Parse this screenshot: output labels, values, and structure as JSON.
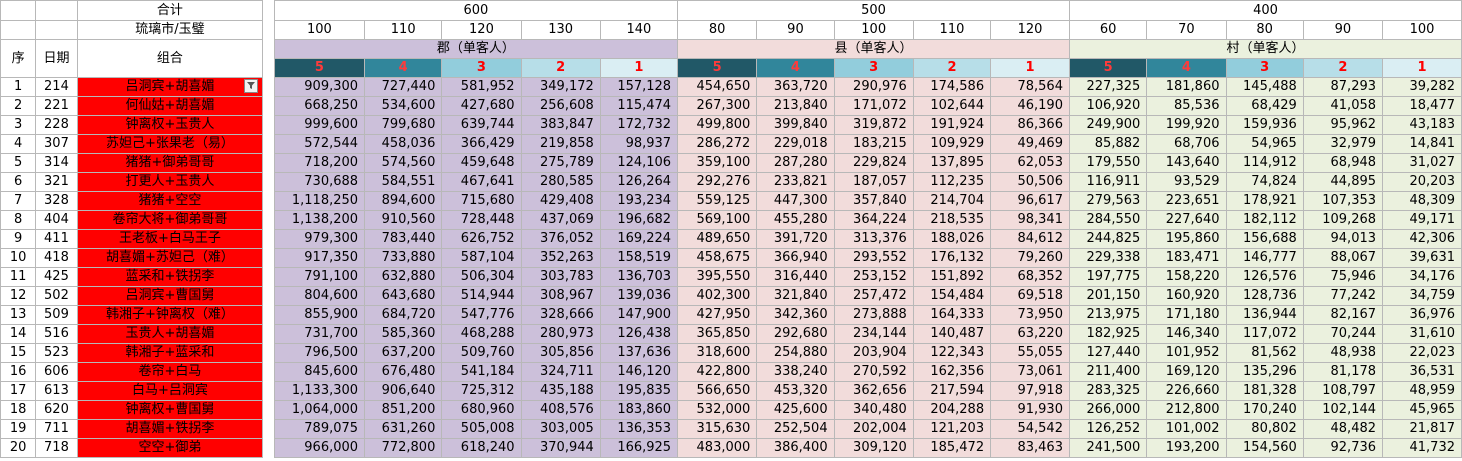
{
  "header": {
    "total_label": "合计",
    "location_label": "琉璃市/玉璧",
    "combo_label": "组合",
    "seq_label": "序",
    "date_label": "日期",
    "filter_icon": "filter-icon"
  },
  "groups": [
    {
      "amount": "600",
      "tier": "郡（单客人）",
      "cols": [
        "100",
        "110",
        "120",
        "130",
        "140"
      ]
    },
    {
      "amount": "500",
      "tier": "县（单客人）",
      "cols": [
        "80",
        "90",
        "100",
        "110",
        "120"
      ]
    },
    {
      "amount": "400",
      "tier": "村（单客人）",
      "cols": [
        "60",
        "70",
        "80",
        "90",
        "100"
      ]
    }
  ],
  "levels": [
    "5",
    "4",
    "3",
    "2",
    "1"
  ],
  "rows": [
    {
      "seq": "1",
      "date": "214",
      "combo": "吕洞宾+胡喜媚",
      "v": [
        "909,300",
        "727,440",
        "581,952",
        "349,172",
        "157,128",
        "454,650",
        "363,720",
        "290,976",
        "174,586",
        "78,564",
        "227,325",
        "181,860",
        "145,488",
        "87,293",
        "39,282"
      ]
    },
    {
      "seq": "2",
      "date": "221",
      "combo": "何仙姑+胡喜媚",
      "v": [
        "668,250",
        "534,600",
        "427,680",
        "256,608",
        "115,474",
        "267,300",
        "213,840",
        "171,072",
        "102,644",
        "46,190",
        "106,920",
        "85,536",
        "68,429",
        "41,058",
        "18,477"
      ]
    },
    {
      "seq": "3",
      "date": "228",
      "combo": "钟离权+玉贵人",
      "v": [
        "999,600",
        "799,680",
        "639,744",
        "383,847",
        "172,732",
        "499,800",
        "399,840",
        "319,872",
        "191,924",
        "86,366",
        "249,900",
        "199,920",
        "159,936",
        "95,962",
        "43,183"
      ]
    },
    {
      "seq": "4",
      "date": "307",
      "combo": "苏妲己+张果老（易）",
      "v": [
        "572,544",
        "458,036",
        "366,429",
        "219,858",
        "98,937",
        "286,272",
        "229,018",
        "183,215",
        "109,929",
        "49,469",
        "85,882",
        "68,706",
        "54,965",
        "32,979",
        "14,841"
      ]
    },
    {
      "seq": "5",
      "date": "314",
      "combo": "猪猪+御弟哥哥",
      "v": [
        "718,200",
        "574,560",
        "459,648",
        "275,789",
        "124,106",
        "359,100",
        "287,280",
        "229,824",
        "137,895",
        "62,053",
        "179,550",
        "143,640",
        "114,912",
        "68,948",
        "31,027"
      ]
    },
    {
      "seq": "6",
      "date": "321",
      "combo": "打更人+玉贵人",
      "v": [
        "730,688",
        "584,551",
        "467,641",
        "280,585",
        "126,264",
        "292,276",
        "233,821",
        "187,057",
        "112,235",
        "50,506",
        "116,911",
        "93,529",
        "74,824",
        "44,895",
        "20,203"
      ]
    },
    {
      "seq": "7",
      "date": "328",
      "combo": "猪猪+空空",
      "v": [
        "1,118,250",
        "894,600",
        "715,680",
        "429,408",
        "193,234",
        "559,125",
        "447,300",
        "357,840",
        "214,704",
        "96,617",
        "279,563",
        "223,651",
        "178,921",
        "107,353",
        "48,309"
      ]
    },
    {
      "seq": "8",
      "date": "404",
      "combo": "卷帘大将+御弟哥哥",
      "v": [
        "1,138,200",
        "910,560",
        "728,448",
        "437,069",
        "196,682",
        "569,100",
        "455,280",
        "364,224",
        "218,535",
        "98,341",
        "284,550",
        "227,640",
        "182,112",
        "109,268",
        "49,171"
      ]
    },
    {
      "seq": "9",
      "date": "411",
      "combo": "王老板+白马王子",
      "v": [
        "979,300",
        "783,440",
        "626,752",
        "376,052",
        "169,224",
        "489,650",
        "391,720",
        "313,376",
        "188,026",
        "84,612",
        "244,825",
        "195,860",
        "156,688",
        "94,013",
        "42,306"
      ]
    },
    {
      "seq": "10",
      "date": "418",
      "combo": "胡喜媚+苏妲己（难）",
      "v": [
        "917,350",
        "733,880",
        "587,104",
        "352,263",
        "158,519",
        "458,675",
        "366,940",
        "293,552",
        "176,132",
        "79,260",
        "229,338",
        "183,471",
        "146,777",
        "88,067",
        "39,631"
      ]
    },
    {
      "seq": "11",
      "date": "425",
      "combo": "蓝采和+铁拐李",
      "v": [
        "791,100",
        "632,880",
        "506,304",
        "303,783",
        "136,703",
        "395,550",
        "316,440",
        "253,152",
        "151,892",
        "68,352",
        "197,775",
        "158,220",
        "126,576",
        "75,946",
        "34,176"
      ]
    },
    {
      "seq": "12",
      "date": "502",
      "combo": "吕洞宾+曹国舅",
      "v": [
        "804,600",
        "643,680",
        "514,944",
        "308,967",
        "139,036",
        "402,300",
        "321,840",
        "257,472",
        "154,484",
        "69,518",
        "201,150",
        "160,920",
        "128,736",
        "77,242",
        "34,759"
      ]
    },
    {
      "seq": "13",
      "date": "509",
      "combo": "韩湘子+钟离权（难）",
      "v": [
        "855,900",
        "684,720",
        "547,776",
        "328,666",
        "147,900",
        "427,950",
        "342,360",
        "273,888",
        "164,333",
        "73,950",
        "213,975",
        "171,180",
        "136,944",
        "82,167",
        "36,976"
      ]
    },
    {
      "seq": "14",
      "date": "516",
      "combo": "玉贵人+胡喜媚",
      "v": [
        "731,700",
        "585,360",
        "468,288",
        "280,973",
        "126,438",
        "365,850",
        "292,680",
        "234,144",
        "140,487",
        "63,220",
        "182,925",
        "146,340",
        "117,072",
        "70,244",
        "31,610"
      ]
    },
    {
      "seq": "15",
      "date": "523",
      "combo": "韩湘子+蓝采和",
      "v": [
        "796,500",
        "637,200",
        "509,760",
        "305,856",
        "137,636",
        "318,600",
        "254,880",
        "203,904",
        "122,343",
        "55,055",
        "127,440",
        "101,952",
        "81,562",
        "48,938",
        "22,023"
      ]
    },
    {
      "seq": "16",
      "date": "606",
      "combo": "卷帘+白马",
      "v": [
        "845,600",
        "676,480",
        "541,184",
        "324,711",
        "146,120",
        "422,800",
        "338,240",
        "270,592",
        "162,356",
        "73,061",
        "211,400",
        "169,120",
        "135,296",
        "81,178",
        "36,531"
      ]
    },
    {
      "seq": "17",
      "date": "613",
      "combo": "白马+吕洞宾",
      "v": [
        "1,133,300",
        "906,640",
        "725,312",
        "435,188",
        "195,835",
        "566,650",
        "453,320",
        "362,656",
        "217,594",
        "97,918",
        "283,325",
        "226,660",
        "181,328",
        "108,797",
        "48,959"
      ]
    },
    {
      "seq": "18",
      "date": "620",
      "combo": "钟离权+曹国舅",
      "v": [
        "1,064,000",
        "851,200",
        "680,960",
        "408,576",
        "183,860",
        "532,000",
        "425,600",
        "340,480",
        "204,288",
        "91,930",
        "266,000",
        "212,800",
        "170,240",
        "102,144",
        "45,965"
      ]
    },
    {
      "seq": "19",
      "date": "711",
      "combo": "胡喜媚+铁拐李",
      "v": [
        "789,075",
        "631,260",
        "505,008",
        "303,005",
        "136,353",
        "315,630",
        "252,504",
        "202,004",
        "121,203",
        "54,542",
        "126,252",
        "101,002",
        "80,802",
        "48,482",
        "21,817"
      ]
    },
    {
      "seq": "20",
      "date": "718",
      "combo": "空空+御弟",
      "v": [
        "966,000",
        "772,800",
        "618,240",
        "370,944",
        "166,925",
        "483,000",
        "386,400",
        "309,120",
        "185,472",
        "83,463",
        "241,500",
        "193,200",
        "154,560",
        "92,736",
        "41,732"
      ]
    }
  ]
}
